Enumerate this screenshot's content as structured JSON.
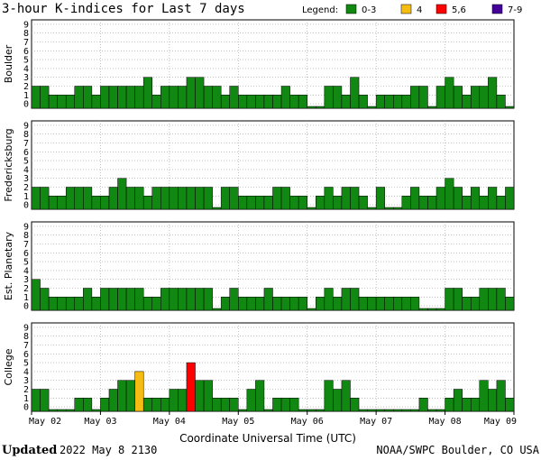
{
  "header": {
    "title": "3-hour K-indices for Last 7 days",
    "legend_label": "Legend:",
    "legend": [
      {
        "label": "0-3",
        "color": "#118811"
      },
      {
        "label": "4",
        "color": "#f5bd14"
      },
      {
        "label": "5,6",
        "color": "#ff0000"
      },
      {
        "label": "7-9",
        "color": "#440099"
      }
    ]
  },
  "footer": {
    "updated_label": "Updated",
    "updated_value": "2022 May  8 2130",
    "source": "NOAA/SWPC Boulder, CO USA"
  },
  "chart_data": {
    "type": "bar",
    "xlabel": "Coordinate Universal Time (UTC)",
    "x_ticks": [
      "May 02",
      "May 03",
      "May 04",
      "May 05",
      "May 06",
      "May 07",
      "May 08",
      "May 09"
    ],
    "y_ticks": [
      "0",
      "1",
      "2",
      "3",
      "4",
      "5",
      "6",
      "7",
      "8",
      "9"
    ],
    "ylim": [
      0,
      9
    ],
    "bars_per_day": 8,
    "color_scale": {
      "0-3": "#118811",
      "4": "#f5bd14",
      "5,6": "#ff0000",
      "7-9": "#440099"
    },
    "panels": [
      {
        "name": "Boulder",
        "values": [
          2,
          2,
          1,
          1,
          1,
          2,
          2,
          1,
          2,
          2,
          2,
          2,
          2,
          3,
          1,
          2,
          2,
          2,
          3,
          3,
          2,
          2,
          1,
          2,
          1,
          1,
          1,
          1,
          1,
          2,
          1,
          1,
          0,
          0,
          2,
          2,
          1,
          3,
          1,
          0,
          1,
          1,
          1,
          1,
          2,
          2,
          0,
          2,
          3,
          2,
          1,
          2,
          2,
          3,
          1,
          0
        ]
      },
      {
        "name": "Fredericksburg",
        "values": [
          2,
          2,
          1,
          1,
          2,
          2,
          2,
          1,
          1,
          2,
          3,
          2,
          2,
          1,
          2,
          2,
          2,
          2,
          2,
          2,
          2,
          0,
          2,
          2,
          1,
          1,
          1,
          1,
          2,
          2,
          1,
          1,
          0,
          1,
          2,
          1,
          2,
          2,
          1,
          0,
          2,
          0,
          0,
          1,
          2,
          1,
          1,
          2,
          3,
          2,
          1,
          2,
          1,
          2,
          1,
          2
        ]
      },
      {
        "name": "Est. Planetary",
        "values": [
          3,
          2,
          1,
          1,
          1,
          1,
          2,
          1,
          2,
          2,
          2,
          2,
          2,
          1,
          1,
          2,
          2,
          2,
          2,
          2,
          2,
          0,
          1,
          2,
          1,
          1,
          1,
          2,
          1,
          1,
          1,
          1,
          0,
          1,
          2,
          1,
          2,
          2,
          1,
          1,
          1,
          1,
          1,
          1,
          1,
          0,
          0,
          0,
          2,
          2,
          1,
          1,
          2,
          2,
          2,
          1
        ]
      },
      {
        "name": "College",
        "values": [
          2,
          2,
          0,
          0,
          0,
          1,
          1,
          0,
          1,
          2,
          3,
          3,
          4,
          1,
          1,
          1,
          2,
          2,
          5,
          3,
          3,
          1,
          1,
          1,
          0,
          2,
          3,
          0,
          1,
          1,
          1,
          0,
          0,
          0,
          3,
          2,
          3,
          1,
          0,
          0,
          0,
          0,
          0,
          0,
          0,
          1,
          0,
          0,
          1,
          2,
          1,
          1,
          3,
          2,
          3,
          1
        ]
      }
    ]
  }
}
